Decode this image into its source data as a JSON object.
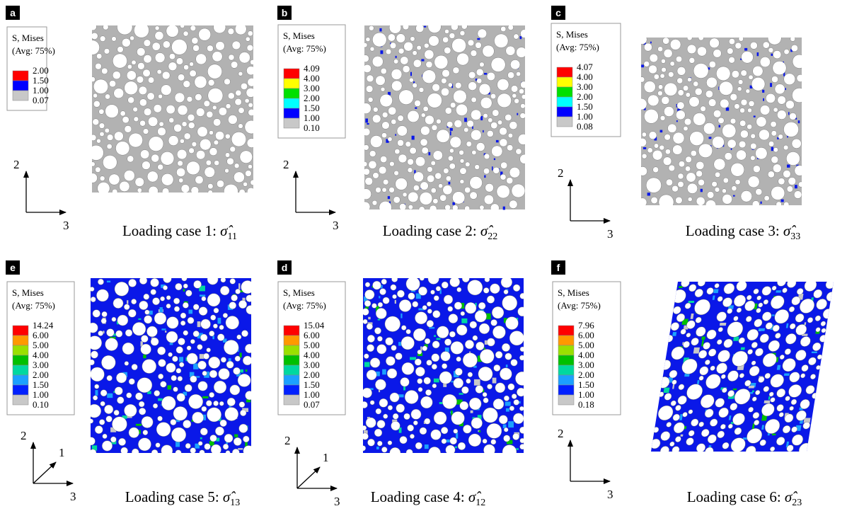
{
  "panels": [
    {
      "label": "a",
      "legend": {
        "title": [
          "S, Mises",
          "(Avg: 75%)"
        ],
        "values": [
          "2.00",
          "1.50",
          "1.00",
          "0.07"
        ],
        "colors": [
          "#ff0000",
          "#0000ff",
          "#c8c8c8"
        ]
      },
      "axes": [
        "2",
        "3"
      ],
      "caption": {
        "text": "Loading case 1: ",
        "symbol": "σ̂",
        "subscript": "11"
      }
    },
    {
      "label": "b",
      "legend": {
        "title": [
          "S, Mises",
          "(Avg: 75%)"
        ],
        "values": [
          "4.09",
          "4.00",
          "3.00",
          "2.00",
          "1.50",
          "1.00",
          "0.10"
        ],
        "colors": [
          "#ff0000",
          "#ffff00",
          "#00e000",
          "#00ffff",
          "#0000ff",
          "#c8c8c8"
        ]
      },
      "axes": [
        "2",
        "3"
      ],
      "caption": {
        "text": "Loading case 2: ",
        "symbol": "σ̂",
        "subscript": "22"
      }
    },
    {
      "label": "c",
      "legend": {
        "title": [
          "S, Mises",
          "(Avg: 75%)"
        ],
        "values": [
          "4.07",
          "4.00",
          "3.00",
          "2.00",
          "1.50",
          "1.00",
          "0.08"
        ],
        "colors": [
          "#ff0000",
          "#ffff00",
          "#00e000",
          "#00ffff",
          "#0000ff",
          "#c8c8c8"
        ]
      },
      "axes": [
        "2",
        "3"
      ],
      "caption": {
        "text": "Loading case 3: ",
        "symbol": "σ̂",
        "subscript": "33"
      }
    },
    {
      "label": "e",
      "legend": {
        "title": [
          "S, Mises",
          "(Avg: 75%)"
        ],
        "values": [
          "14.24",
          "6.00",
          "5.00",
          "4.00",
          "3.00",
          "2.00",
          "1.50",
          "1.00",
          "0.10"
        ],
        "colors": [
          "#ff0000",
          "#ff9900",
          "#99e000",
          "#00c000",
          "#00d8a0",
          "#1ca0ff",
          "#0020ff",
          "#c8c8c8"
        ]
      },
      "axes": [
        "2",
        "3",
        "1"
      ],
      "caption": {
        "text": "Loading case 5: ",
        "symbol": "σ̂",
        "subscript": "13"
      }
    },
    {
      "label": "d",
      "legend": {
        "title": [
          "S, Mises",
          "(Avg: 75%)"
        ],
        "values": [
          "15.04",
          "6.00",
          "5.00",
          "4.00",
          "3.00",
          "2.00",
          "1.50",
          "1.00",
          "0.07"
        ],
        "colors": [
          "#ff0000",
          "#ff9900",
          "#99e000",
          "#00c000",
          "#00d8a0",
          "#1ca0ff",
          "#0020ff",
          "#c8c8c8"
        ]
      },
      "axes": [
        "2",
        "3",
        "1"
      ],
      "caption": {
        "text": "Loading case 4: ",
        "symbol": "σ̂",
        "subscript": "12"
      }
    },
    {
      "label": "f",
      "legend": {
        "title": [
          "S, Mises",
          "(Avg: 75%)"
        ],
        "values": [
          "7.96",
          "6.00",
          "5.00",
          "4.00",
          "3.00",
          "2.00",
          "1.50",
          "1.00",
          "0.18"
        ],
        "colors": [
          "#ff0000",
          "#ff9900",
          "#99e000",
          "#00c000",
          "#00d8a0",
          "#1ca0ff",
          "#0020ff",
          "#c8c8c8"
        ]
      },
      "axes": [
        "2",
        "3"
      ],
      "caption": {
        "text": "Loading case 6: ",
        "symbol": "σ̂",
        "subscript": "23"
      }
    }
  ]
}
